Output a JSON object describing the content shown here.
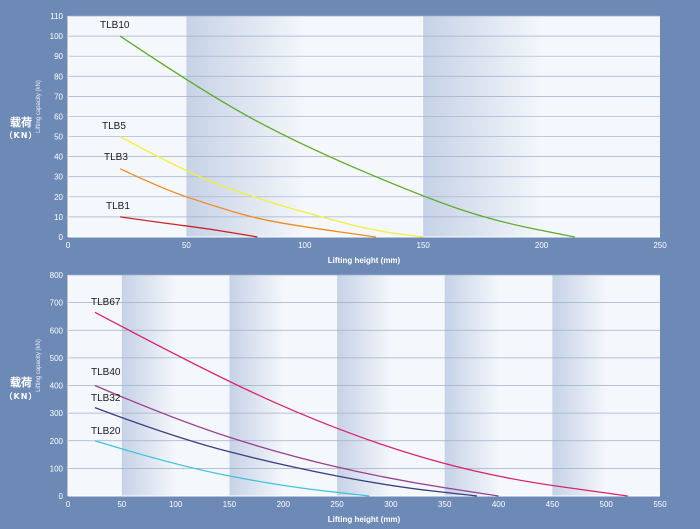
{
  "colors": {
    "background": "#6d89b6",
    "plot_light": "#f4f7fb",
    "plot_dark": "#c6d2e6",
    "gridline": "#9fb0cc"
  },
  "chart_data": [
    {
      "type": "line",
      "ylabel_main": "载荷",
      "ylabel_unit": "（KN）",
      "ylabel_small": "Lifting capacity (kN)",
      "xlabel": "Lifting height (mm)",
      "xlim": [
        0,
        250
      ],
      "ylim": [
        0,
        110
      ],
      "xticks": [
        0,
        50,
        100,
        150,
        200,
        250
      ],
      "yticks": [
        0,
        10,
        20,
        30,
        40,
        50,
        60,
        70,
        80,
        90,
        100,
        110
      ],
      "grid": true,
      "series": [
        {
          "name": "TLB10",
          "color": "#5faa2c",
          "x": [
            22,
            60,
            100,
            150,
            180,
            214
          ],
          "y": [
            100,
            70,
            45,
            20,
            8,
            0
          ]
        },
        {
          "name": "TLB5",
          "color": "#f2ef3c",
          "x": [
            22,
            50,
            80,
            110,
            130,
            150
          ],
          "y": [
            50,
            32,
            19,
            9,
            3,
            0
          ]
        },
        {
          "name": "TLB3",
          "color": "#f08b1e",
          "x": [
            22,
            40,
            60,
            80,
            100,
            130
          ],
          "y": [
            34,
            24,
            16,
            9,
            5,
            0
          ]
        },
        {
          "name": "TLB1",
          "color": "#c8252b",
          "x": [
            22,
            40,
            60,
            80
          ],
          "y": [
            10,
            7,
            4,
            0
          ]
        }
      ]
    },
    {
      "type": "line",
      "ylabel_main": "载荷",
      "ylabel_unit": "（KN）",
      "ylabel_small": "Lifting capacity (kN)",
      "xlabel": "Lifting height (mm)",
      "xlim": [
        0,
        550
      ],
      "ylim": [
        0,
        800
      ],
      "xticks": [
        0,
        50,
        100,
        150,
        200,
        250,
        300,
        350,
        400,
        450,
        500,
        550
      ],
      "yticks": [
        0,
        100,
        200,
        300,
        400,
        500,
        600,
        700,
        800
      ],
      "grid": true,
      "series": [
        {
          "name": "TLB67",
          "color": "#d8246f",
          "x": [
            25,
            100,
            200,
            300,
            400,
            520
          ],
          "y": [
            665,
            510,
            320,
            170,
            65,
            0
          ]
        },
        {
          "name": "TLB40",
          "color": "#9a3e91",
          "x": [
            25,
            100,
            200,
            300,
            400
          ],
          "y": [
            400,
            275,
            150,
            60,
            0
          ]
        },
        {
          "name": "TLB32",
          "color": "#3a3e82",
          "x": [
            25,
            100,
            200,
            300,
            380
          ],
          "y": [
            320,
            210,
            110,
            35,
            0
          ]
        },
        {
          "name": "TLB20",
          "color": "#3ec3dc",
          "x": [
            25,
            100,
            200,
            280
          ],
          "y": [
            200,
            110,
            35,
            0
          ]
        }
      ]
    }
  ]
}
